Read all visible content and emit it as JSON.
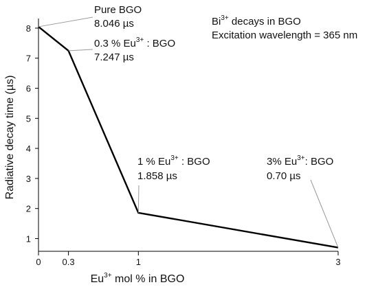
{
  "chart_data": {
    "type": "line",
    "x": [
      0,
      0.3,
      1,
      3
    ],
    "y": [
      8.046,
      7.247,
      1.858,
      0.7
    ],
    "xticks": [
      0,
      0.3,
      1,
      3
    ],
    "xtick_labels": [
      "0",
      "0.3",
      "1",
      "3"
    ],
    "yticks": [
      1,
      2,
      3,
      4,
      5,
      6,
      7,
      8
    ],
    "xlim": [
      0,
      3
    ],
    "ylim": [
      0.6,
      8.25
    ],
    "grid": false,
    "xlabel": {
      "pre": "Eu",
      "sup": "3+",
      "post": " mol % in BGO"
    },
    "ylabel": "Radiative decay time (µs)",
    "legend_text": {
      "line1": {
        "pre": "Bi",
        "sup": "3+",
        "post": " decays in BGO"
      },
      "line2": "Excitation wavelength = 365 nm"
    },
    "annotations": [
      {
        "sample": {
          "pre": "Pure BGO",
          "sup": "",
          "post": ""
        },
        "value": "8.046 µs"
      },
      {
        "sample": {
          "pre": "0.3 % Eu",
          "sup": "3+",
          "post": " : BGO"
        },
        "value": "7.247 µs"
      },
      {
        "sample": {
          "pre": "1 % Eu",
          "sup": "3+",
          "post": " : BGO"
        },
        "value": "1.858 µs"
      },
      {
        "sample": {
          "pre": "3% Eu",
          "sup": "3+",
          "post": ": BGO"
        },
        "value": "0.70 µs"
      }
    ],
    "colors": {
      "line": "#000000",
      "leader": "#999999",
      "axis": "#000000"
    }
  }
}
